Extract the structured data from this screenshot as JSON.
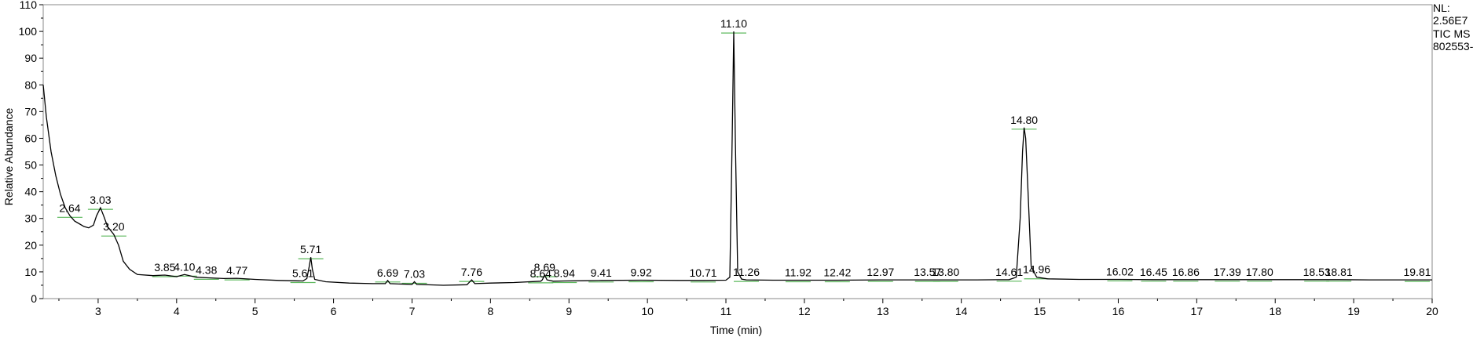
{
  "chart_data": {
    "type": "line",
    "xlabel": "Time (min)",
    "ylabel": "Relative Abundance",
    "xlim": [
      2.3,
      20
    ],
    "ylim": [
      0,
      110
    ],
    "x_ticks": [
      3,
      4,
      5,
      6,
      7,
      8,
      9,
      10,
      11,
      12,
      13,
      14,
      15,
      16,
      17,
      18,
      19,
      20
    ],
    "y_ticks": [
      0,
      10,
      20,
      30,
      40,
      50,
      60,
      70,
      80,
      90,
      100,
      110
    ],
    "info": [
      "NL:",
      "2.56E7",
      "TIC  MS",
      "802553-"
    ],
    "trace": [
      [
        2.3,
        80
      ],
      [
        2.34,
        68
      ],
      [
        2.4,
        55
      ],
      [
        2.46,
        46
      ],
      [
        2.52,
        39
      ],
      [
        2.58,
        34
      ],
      [
        2.64,
        31
      ],
      [
        2.7,
        29
      ],
      [
        2.76,
        28
      ],
      [
        2.82,
        27
      ],
      [
        2.88,
        26.5
      ],
      [
        2.94,
        27.5
      ],
      [
        2.98,
        31
      ],
      [
        3.03,
        34
      ],
      [
        3.07,
        31
      ],
      [
        3.12,
        27
      ],
      [
        3.2,
        24
      ],
      [
        3.26,
        20
      ],
      [
        3.32,
        14
      ],
      [
        3.4,
        11
      ],
      [
        3.5,
        9
      ],
      [
        3.7,
        8.6
      ],
      [
        3.85,
        8.8
      ],
      [
        4.0,
        8.2
      ],
      [
        4.1,
        9.0
      ],
      [
        4.25,
        8.0
      ],
      [
        4.38,
        7.8
      ],
      [
        4.6,
        7.5
      ],
      [
        4.77,
        7.6
      ],
      [
        5.0,
        7.2
      ],
      [
        5.3,
        6.8
      ],
      [
        5.61,
        6.6
      ],
      [
        5.66,
        7.5
      ],
      [
        5.69,
        12
      ],
      [
        5.71,
        15.5
      ],
      [
        5.73,
        11
      ],
      [
        5.76,
        7.2
      ],
      [
        5.9,
        6.3
      ],
      [
        6.2,
        5.8
      ],
      [
        6.5,
        5.6
      ],
      [
        6.66,
        5.6
      ],
      [
        6.69,
        6.8
      ],
      [
        6.72,
        5.6
      ],
      [
        7.0,
        5.3
      ],
      [
        7.03,
        6.3
      ],
      [
        7.06,
        5.3
      ],
      [
        7.4,
        5.0
      ],
      [
        7.7,
        5.2
      ],
      [
        7.76,
        7.0
      ],
      [
        7.8,
        5.6
      ],
      [
        8.0,
        5.8
      ],
      [
        8.3,
        6.0
      ],
      [
        8.64,
        6.5
      ],
      [
        8.66,
        7.0
      ],
      [
        8.69,
        8.8
      ],
      [
        8.72,
        7.0
      ],
      [
        8.8,
        6.5
      ],
      [
        8.94,
        6.6
      ],
      [
        9.2,
        6.7
      ],
      [
        9.41,
        6.8
      ],
      [
        9.92,
        6.9
      ],
      [
        10.4,
        6.8
      ],
      [
        10.71,
        6.8
      ],
      [
        11.0,
        6.9
      ],
      [
        11.05,
        8
      ],
      [
        11.08,
        60
      ],
      [
        11.1,
        100
      ],
      [
        11.12,
        60
      ],
      [
        11.15,
        10
      ],
      [
        11.2,
        7.3
      ],
      [
        11.26,
        7.0
      ],
      [
        11.6,
        6.9
      ],
      [
        11.92,
        6.9
      ],
      [
        12.42,
        6.9
      ],
      [
        12.97,
        7.0
      ],
      [
        13.57,
        7.0
      ],
      [
        13.8,
        7.0
      ],
      [
        14.2,
        7.0
      ],
      [
        14.61,
        7.1
      ],
      [
        14.7,
        8
      ],
      [
        14.75,
        30
      ],
      [
        14.78,
        55
      ],
      [
        14.8,
        64
      ],
      [
        14.82,
        60
      ],
      [
        14.85,
        40
      ],
      [
        14.89,
        12
      ],
      [
        14.96,
        8
      ],
      [
        15.1,
        7.4
      ],
      [
        15.5,
        7.2
      ],
      [
        16.02,
        7.2
      ],
      [
        16.45,
        7.1
      ],
      [
        16.86,
        7.1
      ],
      [
        17.39,
        7.1
      ],
      [
        17.8,
        7.1
      ],
      [
        18.53,
        7.1
      ],
      [
        18.81,
        7.1
      ],
      [
        19.2,
        7.0
      ],
      [
        19.81,
        7.0
      ],
      [
        20.0,
        7.0
      ]
    ],
    "peaks": [
      {
        "rt": "2.64",
        "x": 2.64,
        "y": 31
      },
      {
        "rt": "3.03",
        "x": 3.03,
        "y": 34
      },
      {
        "rt": "3.20",
        "x": 3.2,
        "y": 24
      },
      {
        "rt": "3.85",
        "x": 3.85,
        "y": 8.8
      },
      {
        "rt": "4.10",
        "x": 4.1,
        "y": 9.0
      },
      {
        "rt": "4.38",
        "x": 4.38,
        "y": 7.8
      },
      {
        "rt": "4.77",
        "x": 4.77,
        "y": 7.6
      },
      {
        "rt": "5.61",
        "x": 5.61,
        "y": 6.6
      },
      {
        "rt": "5.71",
        "x": 5.71,
        "y": 15.5
      },
      {
        "rt": "6.69",
        "x": 6.69,
        "y": 6.8
      },
      {
        "rt": "7.03",
        "x": 7.03,
        "y": 6.3
      },
      {
        "rt": "7.76",
        "x": 7.76,
        "y": 7.0
      },
      {
        "rt": "8.64",
        "x": 8.64,
        "y": 6.5
      },
      {
        "rt": "8.69",
        "x": 8.69,
        "y": 8.8
      },
      {
        "rt": "8.94",
        "x": 8.94,
        "y": 6.6
      },
      {
        "rt": "9.41",
        "x": 9.41,
        "y": 6.8
      },
      {
        "rt": "9.92",
        "x": 9.92,
        "y": 6.9
      },
      {
        "rt": "10.71",
        "x": 10.71,
        "y": 6.8
      },
      {
        "rt": "11.10",
        "x": 11.1,
        "y": 100
      },
      {
        "rt": "11.26",
        "x": 11.26,
        "y": 7.0
      },
      {
        "rt": "11.92",
        "x": 11.92,
        "y": 6.9
      },
      {
        "rt": "12.42",
        "x": 12.42,
        "y": 6.9
      },
      {
        "rt": "12.97",
        "x": 12.97,
        "y": 7.0
      },
      {
        "rt": "13.57",
        "x": 13.57,
        "y": 7.0
      },
      {
        "rt": "13.80",
        "x": 13.8,
        "y": 7.0
      },
      {
        "rt": "14.61",
        "x": 14.61,
        "y": 7.1
      },
      {
        "rt": "14.80",
        "x": 14.8,
        "y": 64
      },
      {
        "rt": "14.96",
        "x": 14.96,
        "y": 8
      },
      {
        "rt": "16.02",
        "x": 16.02,
        "y": 7.2
      },
      {
        "rt": "16.45",
        "x": 16.45,
        "y": 7.1
      },
      {
        "rt": "16.86",
        "x": 16.86,
        "y": 7.1
      },
      {
        "rt": "17.39",
        "x": 17.39,
        "y": 7.1
      },
      {
        "rt": "17.80",
        "x": 17.8,
        "y": 7.1
      },
      {
        "rt": "18.53",
        "x": 18.53,
        "y": 7.1
      },
      {
        "rt": "18.81",
        "x": 18.81,
        "y": 7.1
      },
      {
        "rt": "19.81",
        "x": 19.81,
        "y": 7.0
      }
    ],
    "colors": {
      "trace": "#000000",
      "baseline_marker": "#5cb85c",
      "frame": "#888888"
    }
  }
}
